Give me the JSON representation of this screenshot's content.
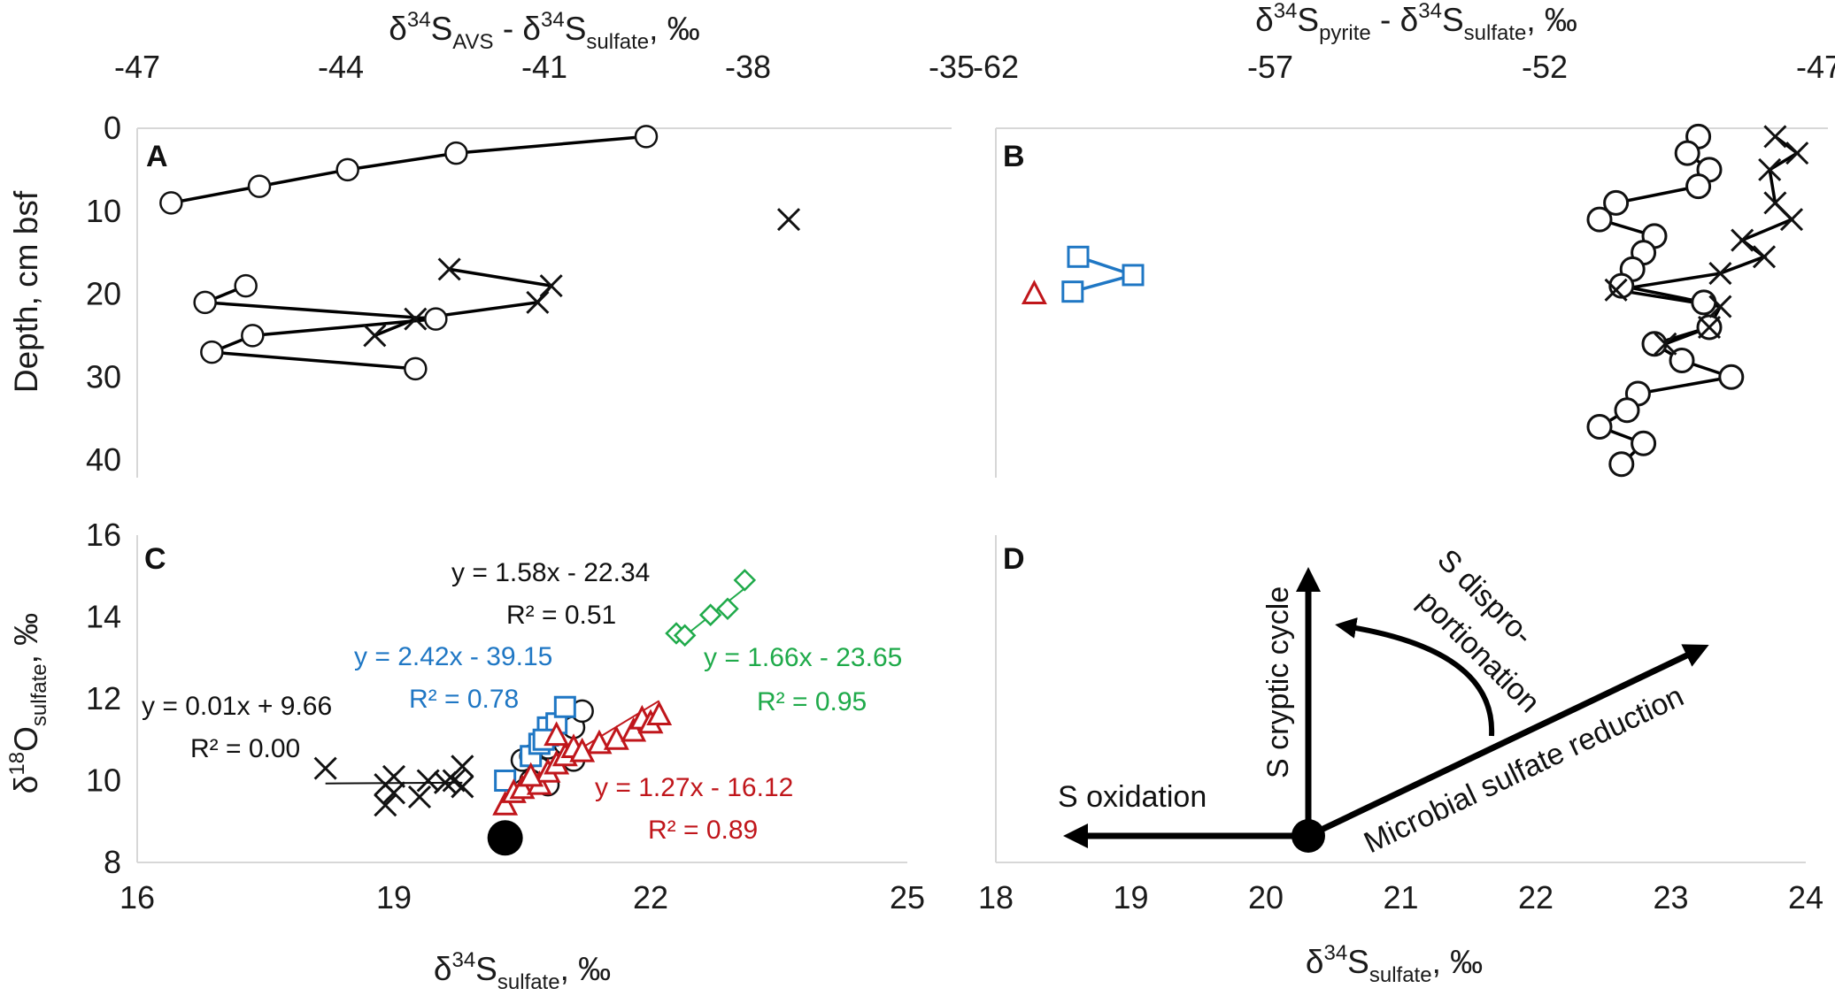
{
  "figure": {
    "panel_labels": [
      "A",
      "B",
      "C",
      "D"
    ],
    "colors": {
      "black": "#111111",
      "blue": "#1f77c4",
      "red": "#c0161b",
      "green": "#1faa4a",
      "gray": "#d7d7d7"
    }
  },
  "chart_data": [
    {
      "panel": "A",
      "type": "line",
      "top_axis_label": {
        "main": "δ",
        "sup1": "34",
        "s1": "S",
        "sub1": "AVS",
        "mid": " - δ",
        "sup2": "34",
        "s2": "S",
        "sub2": "sulfate",
        "tail": ", ‰"
      },
      "ylabel": "Depth, cm bsf",
      "xlim": [
        -47,
        -35
      ],
      "ylim": [
        40,
        0
      ],
      "xticks": [
        "-47",
        "-44",
        "-41",
        "-38",
        "-35"
      ],
      "yticks": [
        "0",
        "10",
        "20",
        "30",
        "40"
      ],
      "series": [
        {
          "name": "circles-upper",
          "marker": "circle",
          "points": [
            [
              -39.5,
              1
            ],
            [
              -42.3,
              3
            ],
            [
              -43.9,
              5
            ],
            [
              -45.2,
              7
            ],
            [
              -46.5,
              9
            ]
          ]
        },
        {
          "name": "circles-lower",
          "marker": "circle",
          "points": [
            [
              -45.4,
              19
            ],
            [
              -46.0,
              21
            ],
            [
              -42.6,
              23
            ],
            [
              -45.3,
              25
            ],
            [
              -45.9,
              27
            ],
            [
              -42.9,
              29
            ]
          ]
        },
        {
          "name": "cross-isolated",
          "marker": "x",
          "points": [
            [
              -37.4,
              11
            ]
          ]
        },
        {
          "name": "crosses",
          "marker": "x",
          "points": [
            [
              -42.4,
              17
            ],
            [
              -40.9,
              19
            ],
            [
              -41.1,
              21
            ],
            [
              -42.9,
              23
            ],
            [
              -43.5,
              25
            ]
          ]
        }
      ]
    },
    {
      "panel": "B",
      "type": "line",
      "top_axis_label": {
        "main": "δ",
        "sup1": "34",
        "s1": "S",
        "sub1": "pyrite",
        "mid": " - δ",
        "sup2": "34",
        "s2": "S",
        "sub2": "sulfate",
        "tail": ", ‰"
      },
      "xlim": [
        -62,
        -47
      ],
      "ylim": [
        40,
        0
      ],
      "xticks": [
        "-62",
        "-57",
        "-52",
        "-47"
      ],
      "series": [
        {
          "name": "circles",
          "marker": "circle",
          "points": [
            [
              -49.2,
              1
            ],
            [
              -49.4,
              3
            ],
            [
              -49.0,
              5
            ],
            [
              -49.2,
              7
            ],
            [
              -50.7,
              9
            ],
            [
              -51.0,
              11
            ],
            [
              -50.0,
              13
            ],
            [
              -50.2,
              15
            ],
            [
              -50.4,
              17
            ],
            [
              -50.6,
              19
            ],
            [
              -49.1,
              21
            ],
            [
              -49.0,
              24
            ],
            [
              -50.0,
              26
            ],
            [
              -49.5,
              28
            ],
            [
              -48.6,
              30
            ],
            [
              -50.3,
              32
            ],
            [
              -50.5,
              34
            ],
            [
              -51.0,
              36
            ],
            [
              -50.2,
              38
            ],
            [
              -50.6,
              40.5
            ]
          ]
        },
        {
          "name": "crosses",
          "marker": "x",
          "points": [
            [
              -47.8,
              1
            ],
            [
              -47.4,
              3
            ],
            [
              -47.9,
              5
            ],
            [
              -47.8,
              9
            ],
            [
              -47.5,
              11
            ],
            [
              -48.4,
              13.5
            ],
            [
              -48.0,
              15.5
            ],
            [
              -48.8,
              17.5
            ],
            [
              -50.7,
              19.5
            ],
            [
              -48.8,
              21.5
            ],
            [
              -49.0,
              24
            ],
            [
              -49.8,
              26
            ]
          ]
        },
        {
          "name": "blue squares",
          "marker": "square",
          "color": "#1f77c4",
          "points": [
            [
              -60.5,
              15.5
            ],
            [
              -59.5,
              17.7
            ],
            [
              -60.6,
              19.7
            ]
          ]
        },
        {
          "name": "red triangle",
          "marker": "triangle",
          "color": "#c0161b",
          "points": [
            [
              -61.3,
              20
            ]
          ]
        }
      ]
    },
    {
      "panel": "C",
      "type": "scatter",
      "xlabel": {
        "main": "δ",
        "sup": "34",
        "s": "S",
        "sub": "sulfate",
        "tail": ", ‰"
      },
      "ylabel": {
        "main": "δ",
        "sup": "18",
        "s": "O",
        "sub": "sulfate",
        "tail": ", ‰"
      },
      "xlim": [
        16,
        25
      ],
      "ylim": [
        8,
        16
      ],
      "xticks": [
        "16",
        "19",
        "22",
        "25"
      ],
      "yticks": [
        "8",
        "10",
        "12",
        "14",
        "16"
      ],
      "series": [
        {
          "name": "crosses",
          "marker": "x",
          "color": "#111111",
          "points": [
            [
              18.2,
              10.3
            ],
            [
              18.9,
              9.9
            ],
            [
              19.0,
              10.1
            ],
            [
              19.3,
              9.6
            ],
            [
              19.4,
              10.0
            ],
            [
              19.6,
              9.95
            ],
            [
              19.7,
              10.0
            ],
            [
              19.8,
              10.35
            ],
            [
              19.8,
              9.85
            ],
            [
              18.9,
              9.4
            ],
            [
              19.0,
              9.7
            ]
          ],
          "fit": {
            "eq": "y = 0.01x + 9.66",
            "r2": "R² = 0.00",
            "line": [
              [
                18.2,
                9.93
              ],
              [
                19.8,
                9.95
              ]
            ]
          }
        },
        {
          "name": "circles",
          "marker": "circle",
          "color": "#111111",
          "points": [
            [
              20.5,
              10.5
            ],
            [
              20.7,
              10.3
            ],
            [
              20.8,
              10.8
            ],
            [
              21.0,
              10.9
            ],
            [
              21.1,
              11.3
            ],
            [
              21.2,
              11.7
            ],
            [
              20.6,
              10.0
            ],
            [
              20.8,
              9.9
            ],
            [
              20.6,
              10.6
            ],
            [
              21.1,
              10.5
            ]
          ],
          "fit": {
            "eq": "y = 1.58x - 22.34",
            "r2": "R² = 0.51",
            "line": [
              [
                20.4,
                9.9
              ],
              [
                21.2,
                11.2
              ]
            ]
          }
        },
        {
          "name": "squares",
          "marker": "square",
          "color": "#1f77c4",
          "points": [
            [
              20.3,
              10.0
            ],
            [
              20.6,
              10.6
            ],
            [
              20.7,
              10.9
            ],
            [
              20.8,
              11.1
            ],
            [
              20.8,
              11.3
            ],
            [
              20.9,
              11.4
            ],
            [
              21.0,
              11.8
            ],
            [
              20.75,
              11.0
            ]
          ],
          "fit": {
            "eq": "y = 2.42x - 39.15",
            "r2": "R² = 0.78",
            "line": [
              [
                20.3,
                10.0
              ],
              [
                21.0,
                11.7
              ]
            ]
          }
        },
        {
          "name": "triangles",
          "marker": "triangle",
          "color": "#c0161b",
          "points": [
            [
              20.3,
              9.4
            ],
            [
              20.4,
              9.7
            ],
            [
              20.5,
              9.8
            ],
            [
              20.7,
              9.9
            ],
            [
              20.8,
              10.2
            ],
            [
              20.9,
              10.4
            ],
            [
              21.0,
              10.6
            ],
            [
              21.1,
              10.8
            ],
            [
              21.4,
              10.9
            ],
            [
              21.6,
              11.0
            ],
            [
              21.8,
              11.2
            ],
            [
              21.9,
              11.5
            ],
            [
              22.0,
              11.4
            ],
            [
              22.1,
              11.6
            ],
            [
              20.6,
              10.1
            ],
            [
              20.9,
              11.1
            ],
            [
              21.2,
              10.7
            ]
          ],
          "fit": {
            "eq": "y = 1.27x - 16.12",
            "r2": "R² = 0.89",
            "line": [
              [
                20.3,
                9.66
              ],
              [
                22.1,
                11.95
              ]
            ]
          }
        },
        {
          "name": "diamonds",
          "marker": "diamond",
          "color": "#1faa4a",
          "points": [
            [
              22.3,
              13.6
            ],
            [
              22.4,
              13.55
            ],
            [
              22.7,
              14.05
            ],
            [
              22.9,
              14.2
            ],
            [
              23.1,
              14.9
            ]
          ],
          "fit": {
            "eq": "y = 1.66x - 23.65",
            "r2": "R² = 0.95",
            "line": [
              [
                22.3,
                13.37
              ],
              [
                23.1,
                14.7
              ]
            ]
          }
        },
        {
          "name": "initial",
          "marker": "filled-circle",
          "color": "#000000",
          "points": [
            [
              20.3,
              8.6
            ]
          ]
        }
      ]
    },
    {
      "panel": "D",
      "type": "diagram",
      "xlabel": {
        "main": "δ",
        "sup": "34",
        "s": "S",
        "sub": "sulfate",
        "tail": ", ‰"
      },
      "xlim": [
        18,
        24
      ],
      "ylim": [
        8,
        16
      ],
      "xticks": [
        "18",
        "19",
        "20",
        "21",
        "22",
        "23",
        "24"
      ],
      "origin": [
        20.3,
        8.6
      ],
      "labels": {
        "oxidation": "S oxidation",
        "cryptic": "S cryptic cycle",
        "disp1": "S dispro-",
        "disp2": "portionation",
        "msr": "Microbial sulfate reduction"
      }
    }
  ]
}
